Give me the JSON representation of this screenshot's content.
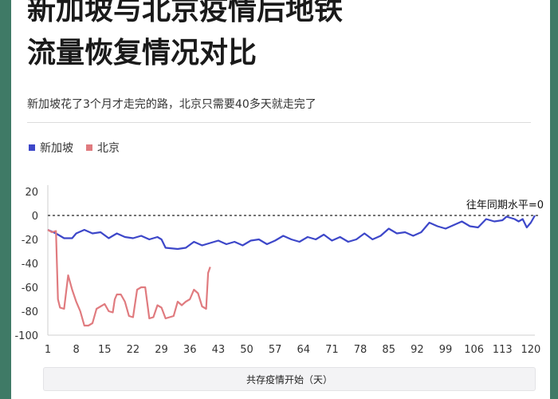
{
  "title_line1": "新加坡与北京疫情后地铁",
  "title_line2": "流量恢复情况对比",
  "subtitle": "新加坡花了3个月才走完的路，北京只需要40多天就走完了",
  "colors": {
    "singapore": "#3d47c9",
    "beijing": "#e07b7f",
    "background": "#3f7a66"
  },
  "chart_data": {
    "type": "line",
    "xlabel": "共存疫情开始（天）",
    "ylabel": "",
    "xlim": [
      1,
      121
    ],
    "ylim": [
      -100,
      20
    ],
    "yticks": [
      20,
      0,
      -20,
      -40,
      -60,
      -80,
      -100
    ],
    "xticks": [
      1,
      8,
      15,
      22,
      29,
      36,
      43,
      50,
      57,
      64,
      71,
      78,
      85,
      92,
      99,
      106,
      113,
      120
    ],
    "reference_line": {
      "y": 0,
      "label": "往年同期水平=0"
    },
    "legend": "top-left",
    "series": [
      {
        "name": "新加坡",
        "points": [
          [
            1,
            -12
          ],
          [
            3,
            -15
          ],
          [
            5,
            -19
          ],
          [
            7,
            -19
          ],
          [
            8,
            -15
          ],
          [
            10,
            -12
          ],
          [
            12,
            -15
          ],
          [
            14,
            -14
          ],
          [
            16,
            -19
          ],
          [
            18,
            -15
          ],
          [
            20,
            -18
          ],
          [
            22,
            -19
          ],
          [
            24,
            -17
          ],
          [
            26,
            -20
          ],
          [
            28,
            -18
          ],
          [
            29,
            -20
          ],
          [
            30,
            -27
          ],
          [
            33,
            -28
          ],
          [
            35,
            -27
          ],
          [
            37,
            -22
          ],
          [
            39,
            -25
          ],
          [
            41,
            -23
          ],
          [
            43,
            -21
          ],
          [
            45,
            -24
          ],
          [
            47,
            -22
          ],
          [
            49,
            -25
          ],
          [
            51,
            -21
          ],
          [
            53,
            -20
          ],
          [
            55,
            -24
          ],
          [
            57,
            -21
          ],
          [
            59,
            -17
          ],
          [
            61,
            -20
          ],
          [
            63,
            -22
          ],
          [
            65,
            -18
          ],
          [
            67,
            -20
          ],
          [
            69,
            -16
          ],
          [
            71,
            -21
          ],
          [
            73,
            -18
          ],
          [
            75,
            -22
          ],
          [
            77,
            -20
          ],
          [
            79,
            -15
          ],
          [
            81,
            -20
          ],
          [
            83,
            -17
          ],
          [
            85,
            -11
          ],
          [
            87,
            -15
          ],
          [
            89,
            -14
          ],
          [
            91,
            -17
          ],
          [
            93,
            -14
          ],
          [
            95,
            -6
          ],
          [
            97,
            -9
          ],
          [
            99,
            -11
          ],
          [
            101,
            -8
          ],
          [
            103,
            -5
          ],
          [
            105,
            -9
          ],
          [
            107,
            -10
          ],
          [
            109,
            -3
          ],
          [
            111,
            -5
          ],
          [
            113,
            -4
          ],
          [
            114,
            -1
          ],
          [
            116,
            -3
          ],
          [
            117,
            -5
          ],
          [
            118,
            -3
          ],
          [
            119,
            -10
          ],
          [
            120,
            -6
          ],
          [
            121,
            0
          ]
        ]
      },
      {
        "name": "北京",
        "points": [
          [
            1,
            -12
          ],
          [
            2,
            -14
          ],
          [
            3,
            -13
          ],
          [
            3.5,
            -70
          ],
          [
            4,
            -77
          ],
          [
            5,
            -78
          ],
          [
            6,
            -50
          ],
          [
            7,
            -62
          ],
          [
            8,
            -72
          ],
          [
            9,
            -80
          ],
          [
            10,
            -92
          ],
          [
            11,
            -92
          ],
          [
            12,
            -90
          ],
          [
            13,
            -78
          ],
          [
            14,
            -76
          ],
          [
            15,
            -74
          ],
          [
            16,
            -80
          ],
          [
            17,
            -81
          ],
          [
            17.5,
            -70
          ],
          [
            18,
            -66
          ],
          [
            19,
            -66
          ],
          [
            20,
            -72
          ],
          [
            21,
            -84
          ],
          [
            22,
            -85
          ],
          [
            23,
            -62
          ],
          [
            24,
            -60
          ],
          [
            25,
            -60
          ],
          [
            26,
            -86
          ],
          [
            27,
            -85
          ],
          [
            28,
            -75
          ],
          [
            29,
            -77
          ],
          [
            30,
            -86
          ],
          [
            31,
            -85
          ],
          [
            32,
            -84
          ],
          [
            33,
            -72
          ],
          [
            34,
            -75
          ],
          [
            35,
            -72
          ],
          [
            36,
            -70
          ],
          [
            37,
            -62
          ],
          [
            38,
            -65
          ],
          [
            39,
            -76
          ],
          [
            40,
            -78
          ],
          [
            40.5,
            -48
          ],
          [
            41,
            -43
          ]
        ]
      }
    ]
  }
}
